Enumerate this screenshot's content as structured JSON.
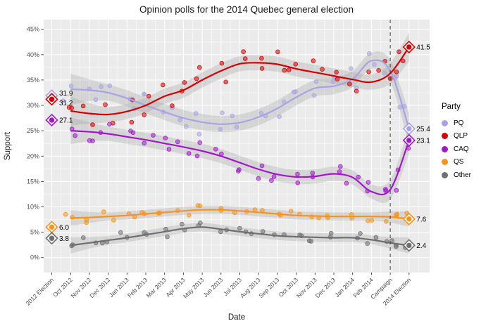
{
  "chart_data": {
    "type": "scatter",
    "subtype": "polls-with-loess-smooth-lines-and-confidence-bands",
    "title": "Opinion polls for the 2014 Quebec general election",
    "xlabel": "Date",
    "ylabel": "Support",
    "ylim": [
      0,
      45
    ],
    "y_tick_labels": [
      "0%",
      "5%",
      "10%",
      "15%",
      "20%",
      "25%",
      "30%",
      "35%",
      "40%",
      "45%"
    ],
    "y_tick_values": [
      0,
      5,
      10,
      15,
      20,
      25,
      30,
      35,
      40,
      45
    ],
    "categories": [
      "2012 Election",
      "Oct 2012",
      "Nov 2012",
      "Dec 2012",
      "Jan 2013",
      "Feb 2013",
      "Mar 2013",
      "Apr 2013",
      "May 2013",
      "Jun 2013",
      "Jul 2013",
      "Aug 2013",
      "Sep 2013",
      "Oct 2013",
      "Nov 2013",
      "Dec 2013",
      "Jan 2014",
      "Feb 2014",
      "Campaign",
      "2014 Election"
    ],
    "campaign_divider_index": 18,
    "grid": true,
    "panel_color": "#ebebeb",
    "gridline_color": "#ffffff",
    "band_color": "#999999",
    "axis_text_color": "#4d4d4d",
    "legend": {
      "title": "Party",
      "position": "right",
      "entries": [
        "PQ",
        "QLP",
        "CAQ",
        "QS",
        "Other"
      ]
    },
    "series": [
      {
        "name": "PQ",
        "color": "#a8a4e4",
        "result_2012": 31.9,
        "result_2012_label": "31.9",
        "result_2014": 25.4,
        "result_2014_label": "25.4",
        "smoothed_values_oct2012_to_election": [
          33.2,
          33.0,
          32.5,
          31.4,
          30.0,
          28.7,
          27.5,
          26.7,
          26.3,
          26.6,
          27.7,
          29.4,
          31.6,
          33.4,
          33.8,
          35.2,
          38.8,
          36.8,
          25.4
        ]
      },
      {
        "name": "QLP",
        "color": "#d60000",
        "result_2012": 31.2,
        "result_2012_label": "31.2",
        "result_2014": 41.5,
        "result_2014_label": "41.5",
        "smoothed_values_oct2012_to_election": [
          28.9,
          28.4,
          28.2,
          28.8,
          30.0,
          31.8,
          33.0,
          35.0,
          36.8,
          38.2,
          38.4,
          38.1,
          37.2,
          36.5,
          35.8,
          35.1,
          34.6,
          36.3,
          41.5
        ]
      },
      {
        "name": "CAQ",
        "color": "#a018c8",
        "result_2012": 27.1,
        "result_2012_label": "27.1",
        "result_2014": 23.1,
        "result_2014_label": "23.1",
        "smoothed_values_oct2012_to_election": [
          25.0,
          24.8,
          24.4,
          23.8,
          23.2,
          22.5,
          21.8,
          21.0,
          20.0,
          18.7,
          17.4,
          16.4,
          15.9,
          16.0,
          16.5,
          15.8,
          13.0,
          13.4,
          23.1
        ]
      },
      {
        "name": "QS",
        "color": "#f7941e",
        "result_2012": 6.0,
        "result_2012_label": "6.0",
        "result_2014": 7.6,
        "result_2014_label": "7.6",
        "smoothed_values_oct2012_to_election": [
          7.8,
          7.9,
          8.1,
          8.3,
          8.6,
          8.9,
          9.2,
          9.4,
          9.4,
          9.2,
          8.9,
          8.6,
          8.3,
          8.2,
          8.1,
          8.1,
          8.1,
          8.0,
          7.6
        ]
      },
      {
        "name": "Other",
        "color": "#6f6f6f",
        "result_2012": 3.8,
        "result_2012_label": "3.8",
        "result_2014": 2.4,
        "result_2014_label": "2.4",
        "smoothed_values_oct2012_to_election": [
          2.4,
          2.9,
          3.4,
          3.9,
          4.5,
          5.1,
          5.7,
          6.0,
          5.6,
          5.1,
          4.7,
          4.3,
          4.1,
          4.0,
          3.9,
          3.9,
          3.5,
          2.9,
          2.4
        ]
      }
    ]
  }
}
